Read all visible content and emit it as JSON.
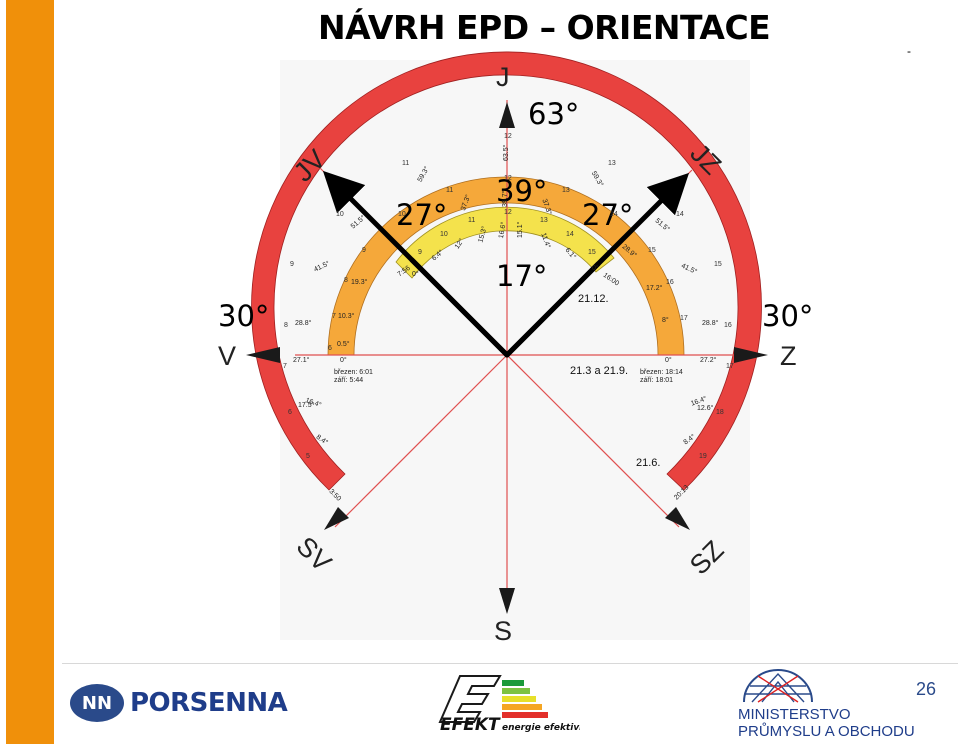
{
  "title": "NÁVRH EPD – ORIENTACE",
  "corner_mark": "-",
  "directions": {
    "north": "J",
    "south": "S",
    "east": "Z",
    "west": "V",
    "ne": "JZ",
    "nw": "JV",
    "se": "SZ",
    "sw": "SV"
  },
  "angles": {
    "top": "63°",
    "left_inner": "27°",
    "center": "39°",
    "right_inner": "27°",
    "lower": "17°",
    "west": "30°",
    "east": "30°"
  },
  "outer_ring": {
    "hours": [
      "12",
      "11",
      "13",
      "10",
      "14",
      "9",
      "15",
      "8",
      "16",
      "7",
      "17",
      "6",
      "18",
      "5",
      "19"
    ],
    "values": [
      "63.5°",
      "59.3°",
      "59.3°",
      "51.5°",
      "51.5°",
      "41.5°",
      "41.5°",
      "28.8°",
      "28.8°",
      "16.4°",
      "16.4°",
      "8.4°",
      "8.4°",
      "27.1°",
      "27.2°",
      "17.5°",
      "12.6°"
    ],
    "time_start": "3:50",
    "time_end": "20:13",
    "date_label": "21.6."
  },
  "middle_ring": {
    "hours": [
      "12",
      "11",
      "13",
      "10",
      "14",
      "9",
      "15",
      "8",
      "16",
      "7",
      "17",
      "6"
    ],
    "values": [
      "39.7°",
      "37.3°",
      "37.3°",
      "19.3°",
      "28.9°",
      "10.3°",
      "17.2°",
      "0.5°",
      "8°",
      "0°",
      "0°"
    ],
    "dates_left": [
      "březen: 6:01",
      "září: 5:44"
    ],
    "dates_right": [
      "březen: 18:14",
      "září: 18:01"
    ],
    "date_label": "21.3 a 21.9."
  },
  "inner_ring": {
    "hours": [
      "12",
      "11",
      "13",
      "10",
      "14",
      "9",
      "15"
    ],
    "values": [
      "16.6°",
      "15.1°",
      "15.3°",
      "11.4°",
      "12°",
      "6.1°",
      "6.4°",
      "0°",
      "0°"
    ],
    "time_start": "7:56",
    "time_end": "16:00",
    "date_label": "21.12."
  },
  "footer": {
    "porsenna_mark": "NN",
    "porsenna": "PORSENNA",
    "efekt": "EFEKT",
    "efekt_sub": "energie efektivně",
    "mpo_line1": "MINISTERSTVO",
    "mpo_line2": "PRŮMYSLU A OBCHODU",
    "page_number": "26"
  },
  "colors": {
    "sidebar": "#f0900a",
    "outer_ring": "#e8423f",
    "middle_ring": "#f5a83a",
    "inner_ring": "#f4e24c",
    "ray_lines": "#e05050"
  }
}
